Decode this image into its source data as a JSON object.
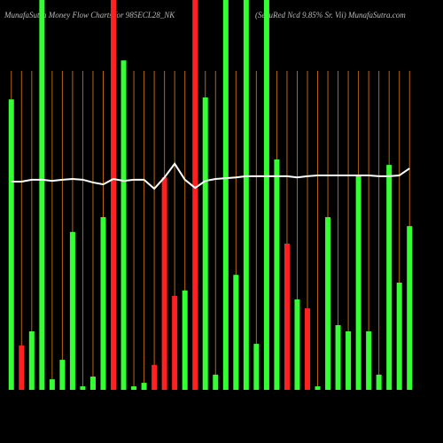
{
  "chart_data": {
    "type": "bar",
    "title": "MunafaSutra  Money Flow  Charts for 985ECL28_NK",
    "subtitle": "(SecuRed Ncd 9.85% Sr. Vii) MunafaSutra.com",
    "categories": [
      null,
      null,
      null,
      null,
      null,
      null,
      null,
      null,
      null,
      null,
      null,
      null,
      null,
      null,
      null,
      null,
      null,
      null,
      null,
      null,
      null,
      null,
      null,
      null,
      null,
      null,
      null,
      null,
      null,
      null,
      null,
      null,
      null,
      null,
      null,
      null,
      null,
      null,
      null,
      null
    ],
    "bars": {
      "values": [
        74.5,
        11.4,
        15,
        100,
        2.7,
        7.7,
        40.5,
        0.9,
        3.4,
        44.3,
        100,
        84.5,
        0.9,
        1.8,
        6.4,
        54.5,
        24.1,
        25.5,
        100,
        75,
        3.9,
        100,
        29.5,
        100,
        11.8,
        100,
        59.1,
        37.5,
        23.2,
        20.9,
        0.9,
        44.3,
        16.6,
        15,
        55.2,
        15,
        3.9,
        57.7,
        27.5,
        42
      ],
      "colors": [
        "#33ff33",
        "#ff2020",
        "#33ff33",
        "#33ff33",
        "#33ff33",
        "#33ff33",
        "#33ff33",
        "#33ff33",
        "#33ff33",
        "#33ff33",
        "#ff2020",
        "#33ff33",
        "#33ff33",
        "#33ff33",
        "#ff2020",
        "#ff2020",
        "#ff2020",
        "#33ff33",
        "#ff2020",
        "#33ff33",
        "#33ff33",
        "#33ff33",
        "#33ff33",
        "#33ff33",
        "#33ff33",
        "#33ff33",
        "#33ff33",
        "#ff2020",
        "#33ff33",
        "#ff2020",
        "#33ff33",
        "#33ff33",
        "#33ff33",
        "#33ff33",
        "#33ff33",
        "#33ff33",
        "#33ff33",
        "#33ff33",
        "#33ff33",
        "#33ff33"
      ]
    },
    "line": {
      "color": "#ffffff",
      "values": [
        53.4,
        53.4,
        53.9,
        53.9,
        53.6,
        53.9,
        54.1,
        53.9,
        53.2,
        52.7,
        54.1,
        53.6,
        53.9,
        53.9,
        51.6,
        54.5,
        58,
        53.9,
        51.8,
        53.6,
        54.1,
        54.3,
        54.5,
        54.8,
        54.8,
        54.8,
        54.8,
        54.8,
        54.5,
        54.8,
        55,
        55,
        55,
        55,
        55,
        55,
        54.8,
        54.8,
        55,
        56.8
      ]
    },
    "grid_color": "#b8660b",
    "ylim": [
      0,
      100
    ],
    "grid": true
  }
}
